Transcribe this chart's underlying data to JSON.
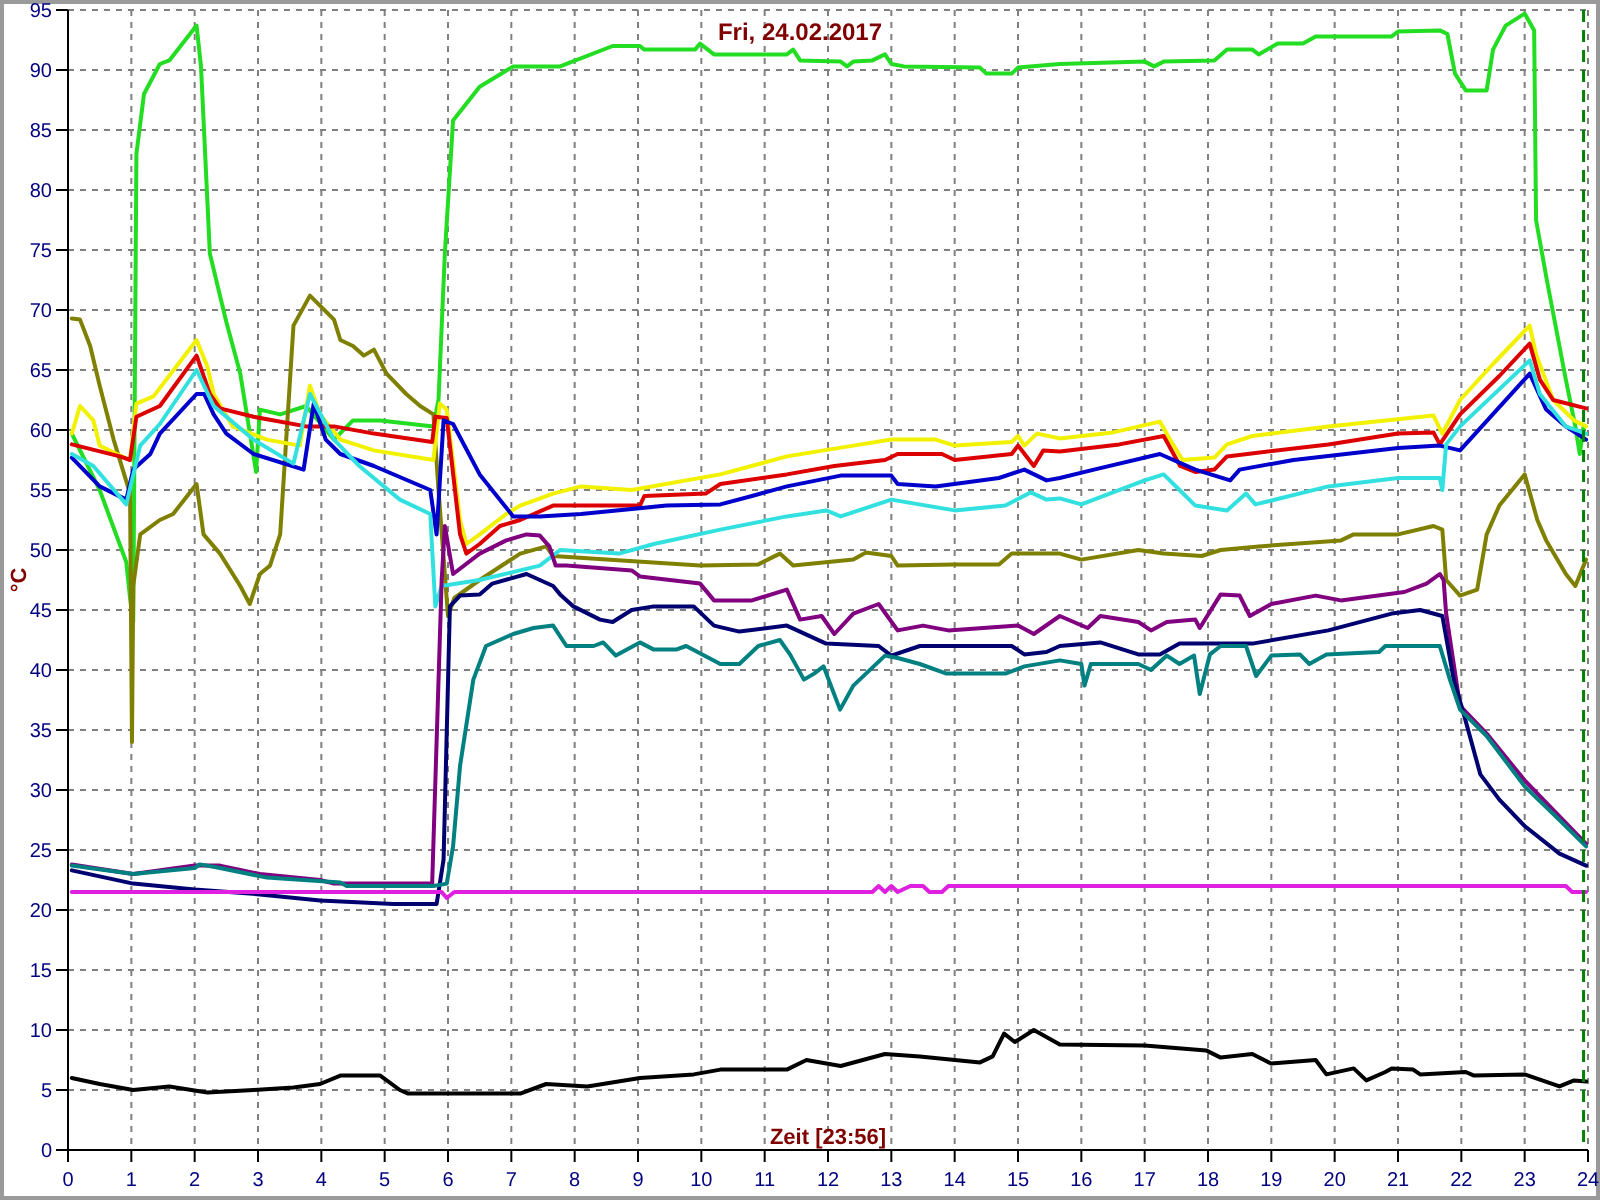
{
  "chart_data": {
    "type": "line",
    "title": "Fri, 24.02.2017",
    "xlabel": "Zeit [23:56]",
    "ylabel": "°C",
    "xlim": [
      0,
      24
    ],
    "ylim": [
      0,
      95
    ],
    "xticks": [
      0,
      1,
      2,
      3,
      4,
      5,
      6,
      7,
      8,
      9,
      10,
      11,
      12,
      13,
      14,
      15,
      16,
      17,
      18,
      19,
      20,
      21,
      22,
      23,
      24
    ],
    "yticks": [
      0,
      5,
      10,
      15,
      20,
      25,
      30,
      35,
      40,
      45,
      50,
      55,
      60,
      65,
      70,
      75,
      80,
      85,
      90,
      95
    ],
    "grid": true,
    "ref_lines": [
      {
        "axis": "x",
        "value": 23.93,
        "color": "#008000",
        "line_style": "dashed"
      }
    ],
    "series": [
      {
        "color": "#22dd22",
        "x": [
          0.06,
          0.5,
          0.92,
          0.98,
          1.03,
          1.08,
          1.2,
          1.45,
          1.6,
          2.03,
          2.1,
          2.24,
          2.5,
          2.72,
          2.97,
          3.03,
          3.35,
          3.76,
          4.2,
          4.5,
          4.93,
          5.77,
          5.85,
          5.95,
          6.08,
          6.5,
          7.03,
          7.77,
          8.6,
          9.03,
          9.1,
          9.9,
          9.98,
          10.2,
          11.35,
          11.45,
          11.56,
          12.2,
          12.3,
          12.4,
          12.7,
          12.9,
          13.0,
          13.2,
          14.4,
          14.5,
          14.9,
          15.0,
          15.66,
          17.0,
          17.15,
          17.3,
          18.1,
          18.3,
          18.7,
          18.8,
          19.1,
          19.5,
          19.7,
          20.9,
          21.0,
          21.66,
          21.78,
          21.9,
          22.07,
          22.4,
          22.5,
          22.7,
          23.0,
          23.15,
          23.18,
          23.35,
          23.65,
          23.8,
          23.87,
          23.93
        ],
        "values": [
          59.7,
          55,
          49,
          46,
          44,
          83,
          88,
          90.5,
          90.8,
          93.7,
          90.3,
          74.7,
          69,
          64.7,
          56.5,
          61.7,
          61.3,
          62,
          59.2,
          60.8,
          60.8,
          60.3,
          62.5,
          74.7,
          85.8,
          88.6,
          90.3,
          90.3,
          92,
          92,
          91.7,
          91.7,
          92.2,
          91.3,
          91.3,
          91.7,
          90.8,
          90.7,
          90.3,
          90.7,
          90.8,
          91.3,
          90.5,
          90.3,
          90.2,
          89.7,
          89.7,
          90.2,
          90.5,
          90.7,
          90.3,
          90.7,
          90.8,
          91.7,
          91.7,
          91.3,
          92.2,
          92.2,
          92.8,
          92.8,
          93.2,
          93.3,
          93,
          89.7,
          88.3,
          88.3,
          91.7,
          93.7,
          94.7,
          93.3,
          77.5,
          72.5,
          64.2,
          60.3,
          58,
          60.3
        ]
      },
      {
        "color": "#808000",
        "x": [
          0.06,
          0.19,
          0.35,
          0.5,
          0.72,
          0.98,
          1.01,
          1.03,
          1.14,
          1.45,
          1.66,
          2.03,
          2.14,
          2.4,
          2.72,
          2.87,
          3.03,
          3.19,
          3.35,
          3.56,
          3.82,
          4.2,
          4.3,
          4.5,
          4.67,
          4.83,
          5.03,
          5.34,
          5.56,
          5.77,
          5.85,
          6.0,
          6.1,
          6.5,
          7.14,
          7.55,
          7.66,
          8.5,
          9.98,
          10.9,
          11.24,
          11.45,
          12.4,
          12.6,
          13.0,
          13.1,
          14.0,
          14.7,
          14.9,
          15.66,
          16.0,
          16.9,
          17.3,
          17.9,
          18.2,
          18.8,
          20.1,
          20.3,
          21.0,
          21.56,
          21.7,
          21.76,
          21.98,
          22.25,
          22.4,
          22.6,
          23.0,
          23.2,
          23.34,
          23.65,
          23.8,
          23.97
        ],
        "values": [
          69.3,
          69.2,
          67,
          63.7,
          59.2,
          54.7,
          34,
          47,
          51.3,
          52.5,
          53,
          55.5,
          51.3,
          49.7,
          47,
          45.5,
          48,
          48.7,
          51.3,
          68.7,
          71.2,
          69.2,
          67.5,
          67,
          66.2,
          66.7,
          64.7,
          63,
          62,
          61.3,
          55,
          44.5,
          46,
          47.5,
          49.7,
          50.3,
          49.5,
          49.2,
          48.7,
          48.8,
          49.7,
          48.7,
          49.2,
          49.8,
          49.5,
          48.7,
          48.8,
          48.8,
          49.7,
          49.7,
          49.2,
          50,
          49.7,
          49.5,
          50,
          50.3,
          50.8,
          51.3,
          51.3,
          52,
          51.7,
          47.5,
          46.2,
          46.7,
          51.3,
          53.7,
          56.3,
          52.5,
          50.8,
          48,
          47,
          49.2
        ]
      },
      {
        "color": "#f2f200",
        "x": [
          0.06,
          0.19,
          0.4,
          0.5,
          0.77,
          0.98,
          1.08,
          1.35,
          2.03,
          2.2,
          2.3,
          2.6,
          3.14,
          3.66,
          3.82,
          3.98,
          4.3,
          4.83,
          5.77,
          5.87,
          5.98,
          6.19,
          6.29,
          6.5,
          6.92,
          7.14,
          7.66,
          8.1,
          8.9,
          10.3,
          11.35,
          12.4,
          13.0,
          13.7,
          14.0,
          14.9,
          15.0,
          15.1,
          15.3,
          15.66,
          16.5,
          17.24,
          17.4,
          17.6,
          18.1,
          18.3,
          18.7,
          19.9,
          21.56,
          21.7,
          21.98,
          22.5,
          23.08,
          23.18,
          23.45,
          23.78,
          23.97
        ],
        "values": [
          59.7,
          62,
          60.8,
          58.7,
          58,
          57.5,
          62.2,
          62.8,
          67.5,
          65.3,
          63,
          60.3,
          59.2,
          58.7,
          63.7,
          61.3,
          59.2,
          58.3,
          57.5,
          62.2,
          61.7,
          52.5,
          50.5,
          51.3,
          53,
          53.7,
          54.7,
          55.3,
          55,
          56.3,
          57.8,
          58.7,
          59.2,
          59.2,
          58.7,
          59,
          59.5,
          58.7,
          59.7,
          59.3,
          59.8,
          60.7,
          59.2,
          57.5,
          57.7,
          58.8,
          59.5,
          60.3,
          61.2,
          59.7,
          62.5,
          65.5,
          68.7,
          66.3,
          62.5,
          60.8,
          60.3
        ]
      },
      {
        "color": "#dd0000",
        "x": [
          0.06,
          0.82,
          0.98,
          1.08,
          1.45,
          2.03,
          2.24,
          2.4,
          2.93,
          3.76,
          4.2,
          4.83,
          5.75,
          5.8,
          5.98,
          6.19,
          6.29,
          6.5,
          6.82,
          7.14,
          7.66,
          9.03,
          9.1,
          10.07,
          10.3,
          11.35,
          12.1,
          12.9,
          13.1,
          13.8,
          14.0,
          14.9,
          15.0,
          15.25,
          15.4,
          15.66,
          16.6,
          17.3,
          17.56,
          17.8,
          18.1,
          18.3,
          19.9,
          21.0,
          21.56,
          21.66,
          21.98,
          22.6,
          23.08,
          23.24,
          23.45,
          23.97
        ],
        "values": [
          58.8,
          57.8,
          57.5,
          61.1,
          62,
          66.2,
          63,
          61.8,
          61.1,
          60.3,
          60.3,
          59.7,
          59,
          61.1,
          61,
          51.3,
          49.7,
          50.5,
          52,
          52.5,
          53.7,
          53.7,
          54.5,
          54.7,
          55.5,
          56.3,
          57,
          57.5,
          58,
          58,
          57.5,
          58,
          58.7,
          57,
          58.3,
          58.2,
          58.8,
          59.5,
          57,
          56.5,
          56.7,
          57.8,
          58.8,
          59.7,
          59.8,
          58.8,
          61.3,
          64.5,
          67.2,
          64.2,
          62.5,
          61.8
        ]
      },
      {
        "color": "#0000cc",
        "x": [
          0.06,
          0.5,
          0.92,
          1.03,
          1.3,
          1.45,
          2.03,
          2.15,
          2.3,
          2.5,
          2.93,
          3.72,
          3.88,
          4.07,
          4.3,
          4.83,
          5.72,
          5.82,
          5.93,
          6.08,
          6.5,
          7.03,
          7.45,
          8.1,
          9.45,
          10.3,
          10.8,
          11.35,
          12.2,
          13.0,
          13.1,
          13.7,
          14.7,
          15.1,
          15.45,
          15.66,
          16.2,
          17.24,
          17.8,
          18.35,
          18.5,
          19.35,
          21.0,
          21.66,
          21.98,
          23.08,
          23.34,
          23.65,
          23.97
        ],
        "values": [
          57.7,
          55.3,
          54.2,
          56.7,
          58,
          59.7,
          63,
          63,
          61.3,
          59.7,
          58,
          56.7,
          62.2,
          59.2,
          58,
          57,
          55,
          51.3,
          60.8,
          60.5,
          56.3,
          52.8,
          52.8,
          53,
          53.7,
          53.8,
          54.5,
          55.3,
          56.2,
          56.2,
          55.5,
          55.3,
          56,
          56.7,
          55.8,
          56,
          56.7,
          58,
          56.7,
          55.8,
          56.7,
          57.5,
          58.5,
          58.7,
          58.3,
          64.7,
          61.7,
          60.3,
          59.2
        ]
      },
      {
        "color": "#33e0e0",
        "x": [
          0.06,
          0.4,
          0.92,
          1.14,
          1.45,
          2.03,
          2.3,
          2.93,
          3.56,
          3.82,
          4.2,
          4.6,
          5.24,
          5.72,
          5.8,
          5.9,
          6.5,
          7.45,
          7.77,
          8.7,
          9.25,
          10.3,
          11.35,
          11.97,
          12.2,
          13.0,
          14.0,
          14.8,
          15.2,
          15.45,
          15.66,
          16.0,
          17.0,
          17.3,
          17.55,
          17.8,
          18.3,
          18.6,
          18.75,
          19.9,
          21.0,
          21.66,
          21.7,
          21.76,
          21.98,
          23.08,
          23.24,
          23.65,
          23.97
        ],
        "values": [
          58,
          57,
          53.8,
          58.7,
          60.5,
          65,
          62,
          59.2,
          57.2,
          63,
          59.2,
          57,
          54.2,
          53,
          45.3,
          47,
          47.5,
          48.7,
          50,
          49.7,
          50.5,
          51.7,
          52.8,
          53.3,
          52.8,
          54.2,
          53.3,
          53.7,
          54.8,
          54.2,
          54.3,
          53.8,
          55.8,
          56.3,
          55,
          53.7,
          53.3,
          54.7,
          53.8,
          55.3,
          56,
          56,
          55,
          58.8,
          60.3,
          65.8,
          63,
          60.3,
          59.7
        ]
      },
      {
        "color": "#800080",
        "x": [
          0.06,
          1.03,
          2.0,
          2.4,
          3.03,
          3.98,
          4.2,
          5.75,
          5.9,
          5.95,
          6.08,
          6.5,
          6.92,
          7.24,
          7.45,
          7.6,
          7.7,
          7.87,
          8.9,
          9.03,
          9.98,
          10.2,
          10.8,
          11.35,
          11.56,
          11.9,
          12.1,
          12.4,
          12.8,
          13.1,
          13.5,
          13.9,
          15.0,
          15.25,
          15.66,
          16.1,
          16.3,
          16.9,
          17.1,
          17.35,
          17.8,
          17.87,
          18.2,
          18.5,
          18.66,
          19.0,
          19.7,
          20.1,
          21.1,
          21.45,
          21.66,
          21.72,
          21.76,
          21.98,
          22.4,
          23.0,
          23.97
        ],
        "values": [
          23.8,
          23,
          23.7,
          23.7,
          23,
          22.5,
          22.2,
          22.2,
          47.5,
          52,
          48,
          49.7,
          50.8,
          51.3,
          51.2,
          50.3,
          48.7,
          48.7,
          48.3,
          47.8,
          47.2,
          45.8,
          45.8,
          46.7,
          44.2,
          44.5,
          43,
          44.7,
          45.5,
          43.3,
          43.7,
          43.3,
          43.7,
          43,
          44.5,
          43.5,
          44.5,
          44,
          43.3,
          44,
          44.2,
          43.5,
          46.3,
          46.2,
          44.5,
          45.5,
          46.2,
          45.8,
          46.5,
          47.2,
          48,
          47.5,
          44.7,
          37,
          34.7,
          30.8,
          25.5
        ]
      },
      {
        "color": "#000070",
        "x": [
          0.06,
          1.03,
          2.0,
          3.03,
          3.98,
          5.14,
          5.82,
          5.93,
          6.03,
          6.19,
          6.5,
          6.7,
          7.24,
          7.45,
          7.66,
          7.77,
          7.98,
          8.4,
          8.6,
          8.9,
          9.25,
          9.88,
          10.2,
          10.6,
          11.35,
          11.97,
          12.8,
          13.0,
          13.45,
          14.0,
          14.9,
          15.1,
          15.45,
          15.66,
          16.3,
          16.9,
          17.24,
          17.55,
          18.3,
          18.7,
          19.9,
          20.9,
          21.35,
          21.7,
          21.88,
          22.04,
          22.3,
          22.6,
          23.0,
          23.55,
          23.97
        ],
        "values": [
          23.3,
          22.2,
          21.7,
          21.3,
          20.8,
          20.5,
          20.5,
          24.2,
          45.3,
          46.2,
          46.3,
          47.2,
          48,
          47.5,
          47,
          46.3,
          45.3,
          44.2,
          44,
          45,
          45.3,
          45.3,
          43.7,
          43.2,
          43.7,
          42.2,
          42,
          41.2,
          42,
          42,
          42,
          41.3,
          41.5,
          42,
          42.3,
          41.3,
          41.3,
          42.2,
          42.2,
          42.2,
          43.3,
          44.7,
          45,
          44.5,
          39.2,
          36.3,
          31.3,
          29.2,
          27,
          24.7,
          23.7
        ]
      },
      {
        "color": "#008080",
        "x": [
          0.06,
          1.03,
          2.0,
          2.08,
          2.4,
          3.14,
          4.3,
          4.4,
          5.77,
          5.98,
          6.08,
          6.19,
          6.4,
          6.6,
          7.03,
          7.35,
          7.66,
          7.87,
          8.3,
          8.45,
          8.65,
          9.03,
          9.25,
          9.6,
          9.76,
          10.3,
          10.6,
          10.9,
          11.24,
          11.4,
          11.62,
          11.78,
          11.93,
          12.19,
          12.4,
          12.9,
          13.1,
          13.45,
          13.87,
          14.8,
          15.1,
          15.66,
          16.0,
          16.05,
          16.15,
          16.9,
          17.1,
          17.35,
          17.55,
          17.78,
          17.87,
          18.03,
          18.2,
          18.6,
          18.76,
          19.0,
          19.45,
          19.6,
          19.87,
          20.7,
          20.8,
          21.66,
          21.82,
          21.98,
          22.4,
          23.0,
          23.55,
          23.97
        ],
        "values": [
          23.7,
          23,
          23.5,
          23.8,
          23.5,
          22.7,
          22.3,
          22,
          22,
          22.2,
          25.3,
          32,
          39.2,
          42,
          43,
          43.5,
          43.7,
          42,
          42,
          42.3,
          41.2,
          42.3,
          41.7,
          41.7,
          42,
          40.5,
          40.5,
          42,
          42.5,
          41.3,
          39.2,
          39.7,
          40.3,
          36.7,
          38.7,
          41.2,
          41,
          40.5,
          39.7,
          39.7,
          40.3,
          40.8,
          40.5,
          38.7,
          40.5,
          40.5,
          40,
          41.2,
          40.5,
          41.2,
          38,
          41.3,
          42,
          42,
          39.5,
          41.2,
          41.3,
          40.5,
          41.3,
          41.5,
          42,
          42,
          39.2,
          36.7,
          34.5,
          30.3,
          27.5,
          25.3
        ]
      },
      {
        "color": "#e020e0",
        "x": [
          0.06,
          5.9,
          5.98,
          6.1,
          12.7,
          12.8,
          12.9,
          13.0,
          13.1,
          13.3,
          13.5,
          13.6,
          13.8,
          13.9,
          23.65,
          23.75,
          23.97
        ],
        "values": [
          21.5,
          21.5,
          21,
          21.5,
          21.5,
          22,
          21.5,
          22,
          21.5,
          22,
          22,
          21.5,
          21.5,
          22,
          22,
          21.5,
          21.5
        ]
      },
      {
        "color": "#000000",
        "x": [
          0.06,
          0.5,
          1.03,
          1.6,
          2.2,
          2.93,
          3.56,
          3.98,
          4.3,
          4.93,
          5.24,
          5.37,
          6.29,
          7.03,
          7.14,
          7.55,
          8.2,
          9.03,
          9.88,
          10.3,
          11.35,
          11.66,
          12.2,
          12.9,
          13.45,
          14.4,
          14.6,
          14.78,
          14.95,
          15.25,
          15.66,
          17.0,
          17.97,
          18.2,
          18.7,
          19.0,
          19.7,
          19.87,
          20.3,
          20.5,
          20.8,
          20.9,
          21.24,
          21.35,
          22.07,
          22.2,
          23.0,
          23.55,
          23.78,
          23.97
        ],
        "values": [
          6,
          5.5,
          5,
          5.3,
          4.8,
          5,
          5.2,
          5.5,
          6.2,
          6.2,
          5,
          4.7,
          4.7,
          4.7,
          4.7,
          5.5,
          5.3,
          6,
          6.3,
          6.7,
          6.7,
          7.5,
          7,
          8,
          7.8,
          7.3,
          7.8,
          9.7,
          9,
          10,
          8.8,
          8.7,
          8.3,
          7.7,
          8,
          7.2,
          7.5,
          6.3,
          6.8,
          5.8,
          6.5,
          6.8,
          6.7,
          6.3,
          6.5,
          6.2,
          6.3,
          5.3,
          5.8,
          5.7
        ]
      }
    ]
  }
}
